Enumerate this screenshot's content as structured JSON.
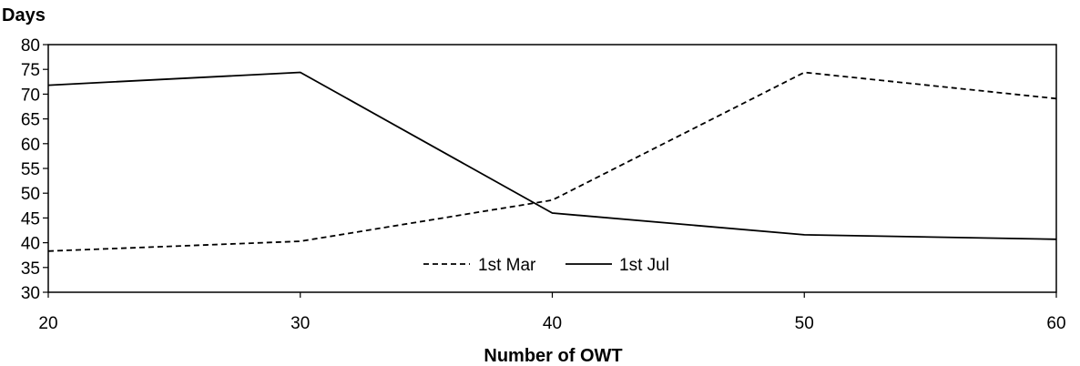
{
  "chart_data": {
    "type": "line",
    "xlabel": "Number of OWT",
    "ylabel": "Days",
    "x": [
      20,
      30,
      40,
      50,
      60
    ],
    "xlim": [
      20,
      60
    ],
    "ylim": [
      30,
      80
    ],
    "x_ticks": [
      20,
      30,
      40,
      50,
      60
    ],
    "y_ticks": [
      30,
      35,
      40,
      45,
      50,
      55,
      60,
      65,
      70,
      75,
      80
    ],
    "grid": false,
    "legend_position": "bottom-center",
    "series": [
      {
        "name": "1st Mar",
        "line_style": "dashed",
        "color": "#000000",
        "values": [
          38.3,
          40.3,
          48.6,
          74.4,
          69.1
        ]
      },
      {
        "name": "1st Jul",
        "line_style": "solid",
        "color": "#000000",
        "values": [
          71.8,
          74.4,
          46.0,
          41.6,
          40.7
        ]
      }
    ]
  }
}
